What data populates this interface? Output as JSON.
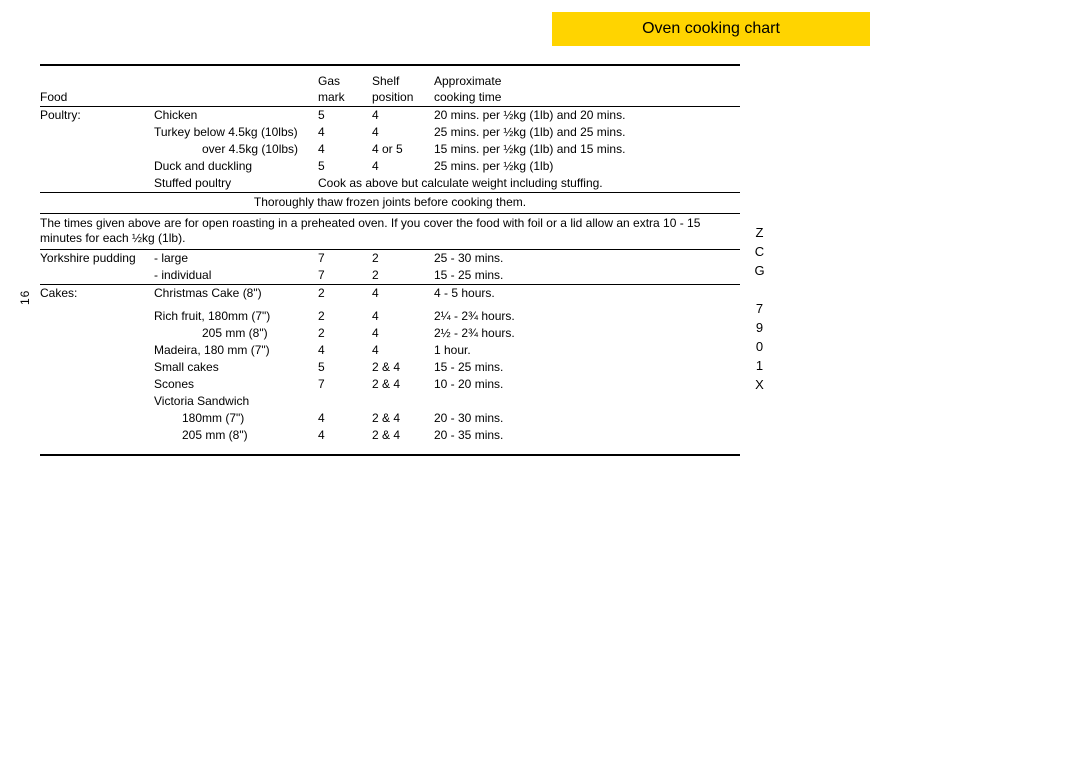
{
  "banner": {
    "title": "Oven cooking chart"
  },
  "page_number": "16",
  "model_code": "ZCG 7901X",
  "headers": {
    "food": "Food",
    "gas_line1": "Gas",
    "gas_line2": "mark",
    "shelf_line1": "Shelf",
    "shelf_line2": "position",
    "time_line1": "Approximate",
    "time_line2": "cooking time"
  },
  "poultry": {
    "label": "Poultry:",
    "rows": [
      {
        "item": "Chicken",
        "gas": "5",
        "shelf": "4",
        "time": "20 mins. per ½kg (1lb) and 20 mins."
      },
      {
        "item": "Turkey below 4.5kg (10lbs)",
        "gas": "4",
        "shelf": "4",
        "time": "25 mins. per ½kg (1lb) and 25 mins."
      },
      {
        "item": "over 4.5kg (10lbs)",
        "indent": "indent2",
        "gas": "4",
        "shelf": "4 or 5",
        "time": "15 mins. per ½kg (1lb) and 15 mins."
      },
      {
        "item": "Duck and duckling",
        "gas": "5",
        "shelf": "4",
        "time": "25 mins. per ½kg (1lb)"
      },
      {
        "item": "Stuffed poultry",
        "span_time": "Cook as above but calculate weight including stuffing."
      }
    ]
  },
  "thaw_note": "Thoroughly thaw frozen joints before cooking them.",
  "foil_note": "The times given above are for open roasting in a preheated oven. If you cover the food with foil or a lid allow an extra 10 - 15 minutes  for each ½kg (1lb).",
  "yorkshire": {
    "label": "Yorkshire pudding",
    "rows": [
      {
        "item": "- large",
        "gas": "7",
        "shelf": "2",
        "time": "25 - 30 mins."
      },
      {
        "item": "- individual",
        "gas": "7",
        "shelf": "2",
        "time": "15 - 25 mins."
      }
    ]
  },
  "cakes": {
    "label": "Cakes:",
    "rows": [
      {
        "item": "Christmas Cake (8\")",
        "gas": "2",
        "shelf": "4",
        "time": "4 - 5 hours."
      },
      {
        "gap": true
      },
      {
        "item": "Rich fruit, 180mm (7\")",
        "gas": "2",
        "shelf": "4",
        "time": "2¼ - 2¾ hours."
      },
      {
        "item": "205 mm (8\")",
        "indent": "indent2",
        "gas": "2",
        "shelf": "4",
        "time": "2½ - 2¾ hours."
      },
      {
        "item": "Madeira,  180 mm (7\")",
        "gas": "4",
        "shelf": "4",
        "time": "1 hour."
      },
      {
        "item": "Small cakes",
        "gas": "5",
        "shelf": "2 & 4",
        "time": "15 - 25 mins."
      },
      {
        "item": "Scones",
        "gas": "7",
        "shelf": "2 & 4",
        "time": "10 - 20 mins."
      },
      {
        "item": "Victoria Sandwich"
      },
      {
        "item": "180mm (7\")",
        "indent": "indent1",
        "gas": "4",
        "shelf": "2 & 4",
        "time": "20 - 30 mins."
      },
      {
        "item": "205 mm (8\")",
        "indent": "indent1",
        "gas": "4",
        "shelf": "2 & 4",
        "time": "20 - 35 mins."
      }
    ]
  },
  "colors": {
    "banner_bg": "#ffd400",
    "text": "#000000",
    "bg": "#ffffff"
  }
}
